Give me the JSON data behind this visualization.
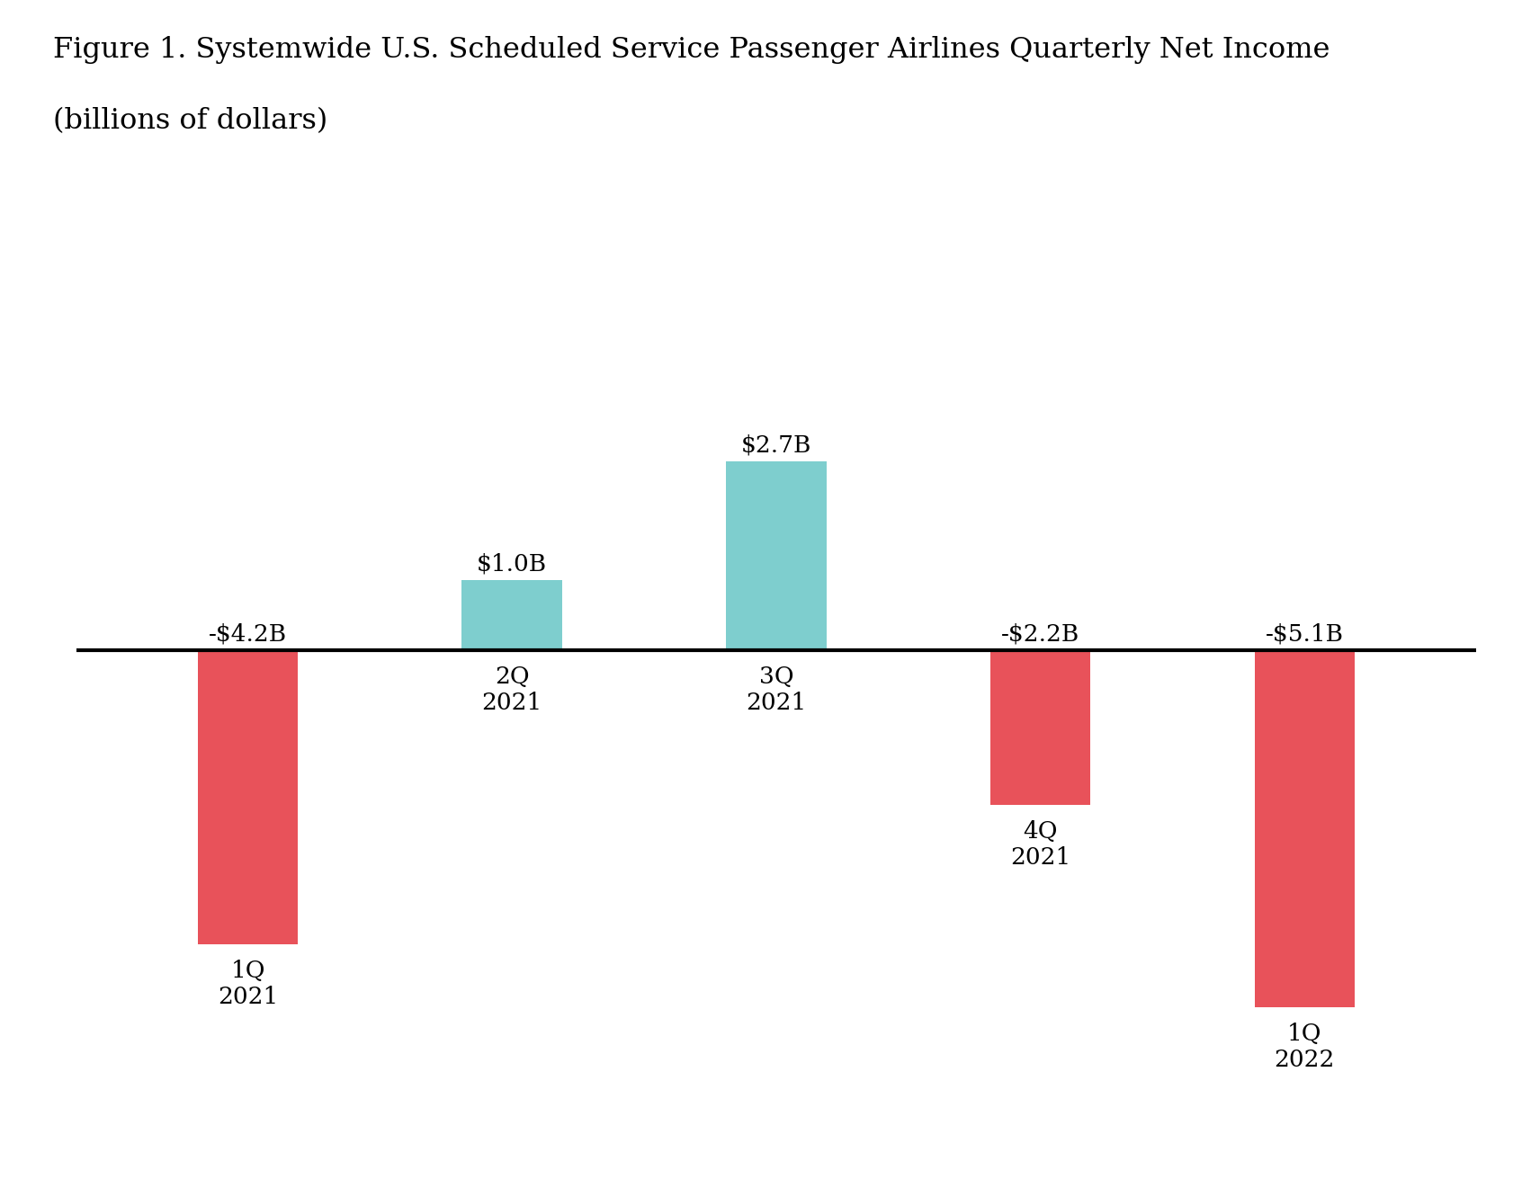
{
  "title_line1": "Figure 1. Systemwide U.S. Scheduled Service Passenger Airlines Quarterly Net Income",
  "title_line2": "(billions of dollars)",
  "categories": [
    "1Q\n2021",
    "2Q\n2021",
    "3Q\n2021",
    "4Q\n2021",
    "1Q\n2022"
  ],
  "values": [
    -4.2,
    1.0,
    2.7,
    -2.2,
    -5.1
  ],
  "bar_colors": [
    "#E8525A",
    "#7ECECE",
    "#7ECECE",
    "#E8525A",
    "#E8525A"
  ],
  "value_labels": [
    "-$4.2B",
    "$1.0B",
    "$2.7B",
    "-$2.2B",
    "-$5.1B"
  ],
  "background_color": "#FFFFFF",
  "text_color": "#000000",
  "title_fontsize": 23,
  "label_fontsize": 19,
  "tick_fontsize": 19,
  "bar_width": 0.38,
  "ylim": [
    -7.0,
    4.2
  ]
}
